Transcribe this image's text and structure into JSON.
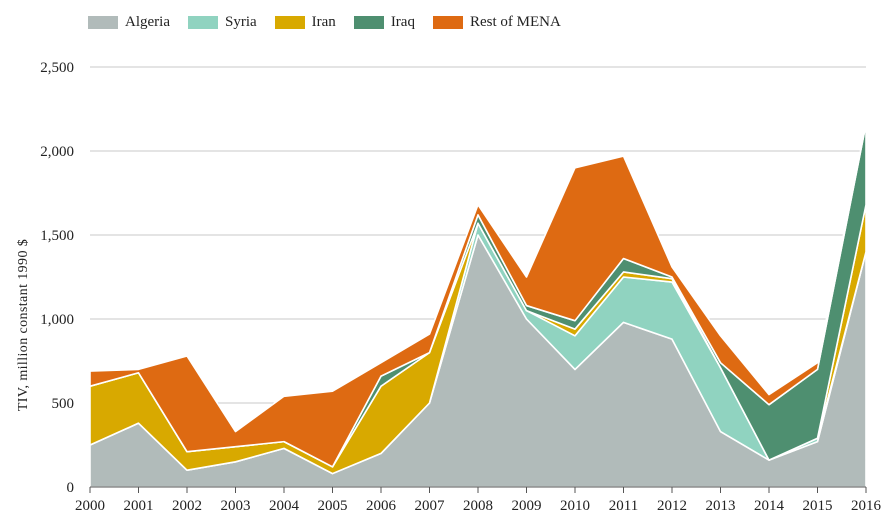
{
  "legend": {
    "items": [
      {
        "label": "Algeria",
        "color": "#b1bbba"
      },
      {
        "label": "Syria",
        "color": "#90d3c0"
      },
      {
        "label": "Iran",
        "color": "#d8a900"
      },
      {
        "label": "Iraq",
        "color": "#4e8f70"
      },
      {
        "label": "Rest of MENA",
        "color": "#de6a12"
      }
    ]
  },
  "chart_data": {
    "type": "area",
    "stacked": true,
    "title": "",
    "xlabel": "",
    "ylabel": "TIV, million constant 1990 $",
    "x": [
      "2000",
      "2001",
      "2002",
      "2003",
      "2004",
      "2005",
      "2006",
      "2007",
      "2008",
      "2009",
      "2010",
      "2011",
      "2012",
      "2013",
      "2014",
      "2015",
      "2016"
    ],
    "ylim": [
      0,
      2500
    ],
    "yticks": [
      0,
      500,
      1000,
      1500,
      2000,
      2500
    ],
    "ytick_labels": [
      "0",
      "500",
      "1,000",
      "1,500",
      "2,000",
      "2,500"
    ],
    "grid": "horizontal",
    "legend_position": "top-left",
    "series": [
      {
        "name": "Algeria",
        "color": "#b1bbba",
        "values": [
          250,
          380,
          100,
          150,
          230,
          80,
          200,
          500,
          1500,
          1000,
          700,
          980,
          880,
          330,
          160,
          270,
          1400
        ]
      },
      {
        "name": "Syria",
        "color": "#90d3c0",
        "values": [
          0,
          0,
          0,
          0,
          0,
          0,
          0,
          0,
          70,
          50,
          200,
          270,
          340,
          380,
          0,
          20,
          0
        ]
      },
      {
        "name": "Iran",
        "color": "#d8a900",
        "values": [
          350,
          300,
          110,
          90,
          40,
          40,
          400,
          300,
          0,
          0,
          40,
          30,
          20,
          0,
          0,
          0,
          280
        ]
      },
      {
        "name": "Iraq",
        "color": "#4e8f70",
        "values": [
          0,
          0,
          0,
          0,
          0,
          0,
          60,
          0,
          50,
          30,
          50,
          80,
          10,
          30,
          330,
          410,
          480
        ]
      },
      {
        "name": "Rest of MENA",
        "color": "#de6a12",
        "values": [
          90,
          20,
          570,
          90,
          270,
          450,
          80,
          110,
          60,
          170,
          910,
          610,
          60,
          160,
          60,
          40,
          0
        ]
      }
    ]
  }
}
